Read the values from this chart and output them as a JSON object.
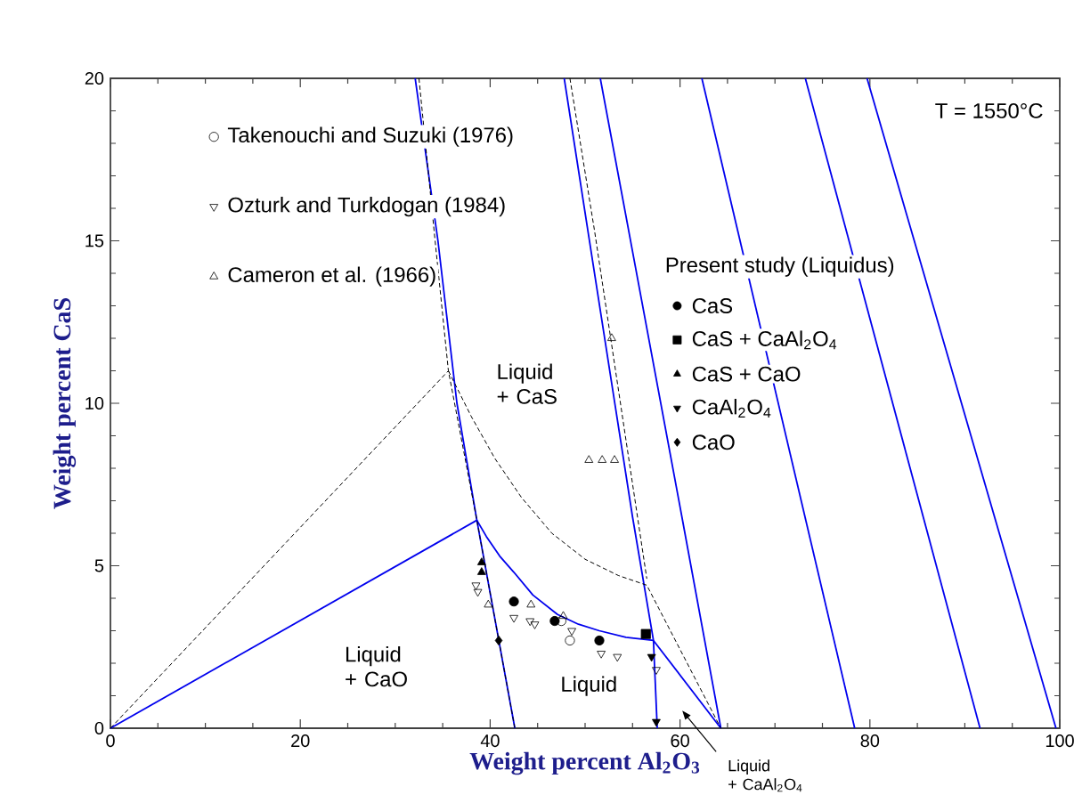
{
  "chart_data": {
    "type": "scatter",
    "xlabel": "Weight percent Al$_{2}$O$_{3}$",
    "ylabel": "Weight percent CaS",
    "legend_title": "Present study (Liquidus)",
    "legend": "top left",
    "xlim": [
      0,
      100
    ],
    "ylim": [
      0,
      20
    ],
    "xticks": [
      0,
      20,
      40,
      60,
      80,
      100
    ],
    "yticks": [
      0,
      5,
      10,
      15,
      20
    ],
    "grid": false,
    "annotations": [
      "T = 1550°C",
      "Liquid + CaS",
      "Liquid + CaO",
      "Liquid",
      "Liquid + CaAl$_{2}$O$_{4}$"
    ],
    "series": [
      {
        "type": "line",
        "color": "#0000ee",
        "line_style": "solid",
        "marker": "none",
        "x": [
          0,
          38.6
        ],
        "values": [
          0,
          6.4
        ]
      },
      {
        "type": "line",
        "color": "#0000ee",
        "line_style": "solid",
        "marker": "none",
        "x": [
          32.1,
          34.5,
          36.5,
          38.6,
          40.6,
          42.6
        ],
        "values": [
          20,
          15,
          10,
          6.4,
          3.2,
          0
        ]
      },
      {
        "type": "line",
        "color": "#0000ee",
        "line_style": "solid",
        "marker": "none",
        "x": [
          38.6,
          39.6,
          41.0,
          42.5,
          44.5,
          47.1,
          49.3,
          51.5,
          54.3,
          57.2
        ],
        "values": [
          6.4,
          5.9,
          5.3,
          4.8,
          4.1,
          3.5,
          3.2,
          3.0,
          2.8,
          2.7
        ]
      },
      {
        "type": "line",
        "color": "#0000ee",
        "line_style": "solid",
        "marker": "none",
        "x": [
          57.2,
          64.3
        ],
        "values": [
          2.7,
          0
        ]
      },
      {
        "type": "line",
        "color": "#0000ee",
        "line_style": "solid",
        "marker": "none",
        "x": [
          47.8,
          50.3,
          55.0,
          57.2,
          57.6
        ],
        "values": [
          20,
          15.3,
          6.5,
          2.7,
          0
        ]
      },
      {
        "type": "line",
        "color": "#0000ee",
        "line_style": "solid",
        "marker": "none",
        "x": [
          51.6,
          54.6,
          60.2,
          64.3
        ],
        "values": [
          20,
          15.3,
          6.5,
          0
        ]
      },
      {
        "type": "line",
        "color": "#0000ee",
        "line_style": "solid",
        "marker": "none",
        "x": [
          62.3,
          78.4
        ],
        "values": [
          20,
          0
        ]
      },
      {
        "type": "line",
        "color": "#0000ee",
        "line_style": "solid",
        "marker": "none",
        "x": [
          73.2,
          91.6
        ],
        "values": [
          20,
          0
        ]
      },
      {
        "type": "line",
        "color": "#0000ee",
        "line_style": "solid",
        "marker": "none",
        "x": [
          79.7,
          99.6
        ],
        "values": [
          20,
          0
        ]
      },
      {
        "type": "line",
        "color": "#000000",
        "line_style": "dashed",
        "marker": "none",
        "x": [
          0,
          35.6
        ],
        "values": [
          0,
          11.0
        ]
      },
      {
        "type": "line",
        "color": "#000000",
        "line_style": "dashed",
        "marker": "none",
        "x": [
          32.5,
          34.2,
          35.6,
          38.6,
          42.6
        ],
        "values": [
          20,
          15,
          11.0,
          6.4,
          0
        ]
      },
      {
        "type": "line",
        "color": "#000000",
        "line_style": "dashed",
        "marker": "none",
        "x": [
          35.6,
          38.0,
          40.5,
          43.3,
          46.5,
          50.0,
          53.5,
          56.5,
          64.3
        ],
        "values": [
          11.0,
          9.6,
          8.3,
          7.1,
          6.0,
          5.2,
          4.7,
          4.4,
          0
        ]
      },
      {
        "type": "line",
        "color": "#000000",
        "line_style": "dashed",
        "marker": "none",
        "x": [
          48.4,
          51.0,
          56.5
        ],
        "values": [
          20,
          15.3,
          4.6
        ]
      },
      {
        "name": "Takenouchi and Suzuki (1976)",
        "color": "#000000",
        "marker": "circle-open",
        "x": [
          47.5,
          48.4
        ],
        "values": [
          3.3,
          2.7
        ]
      },
      {
        "name": "Ozturk and Turkdogan (1984)",
        "color": "#000000",
        "marker": "triangle-down-open",
        "x": [
          38.5,
          38.7,
          42.5,
          44.2,
          44.7,
          48.6,
          51.7,
          53.4,
          57.5
        ],
        "values": [
          4.4,
          4.2,
          3.4,
          3.3,
          3.2,
          3.0,
          2.3,
          2.2,
          1.8
        ]
      },
      {
        "name": "Cameron et al. (1966)",
        "color": "#000000",
        "marker": "triangle-open",
        "x": [
          39.8,
          44.3,
          47.7,
          52.8,
          50.4,
          51.8,
          53.1
        ],
        "values": [
          3.8,
          3.8,
          3.45,
          12.0,
          8.25,
          8.25,
          8.25
        ]
      },
      {
        "name": "CaS",
        "color": "#000000",
        "marker": "circle",
        "x": [
          42.5,
          46.8,
          51.5
        ],
        "values": [
          3.9,
          3.3,
          2.7
        ]
      },
      {
        "name": "CaS + CaAl$_{2}$O$_{4}$",
        "color": "#000000",
        "marker": "square",
        "x": [
          56.4
        ],
        "values": [
          2.9
        ]
      },
      {
        "name": "CaS + CaO",
        "color": "#000000",
        "marker": "triangle",
        "x": [
          39.1,
          39.1
        ],
        "values": [
          5.1,
          4.8
        ]
      },
      {
        "name": "CaAl$_{2}$O$_{4}$",
        "color": "#000000",
        "marker": "triangle-down",
        "x": [
          57.0,
          57.5
        ],
        "values": [
          2.2,
          0.2
        ]
      },
      {
        "name": "CaO",
        "color": "#000000",
        "marker": "diamond",
        "x": [
          40.9
        ],
        "values": [
          2.7
        ]
      }
    ]
  }
}
